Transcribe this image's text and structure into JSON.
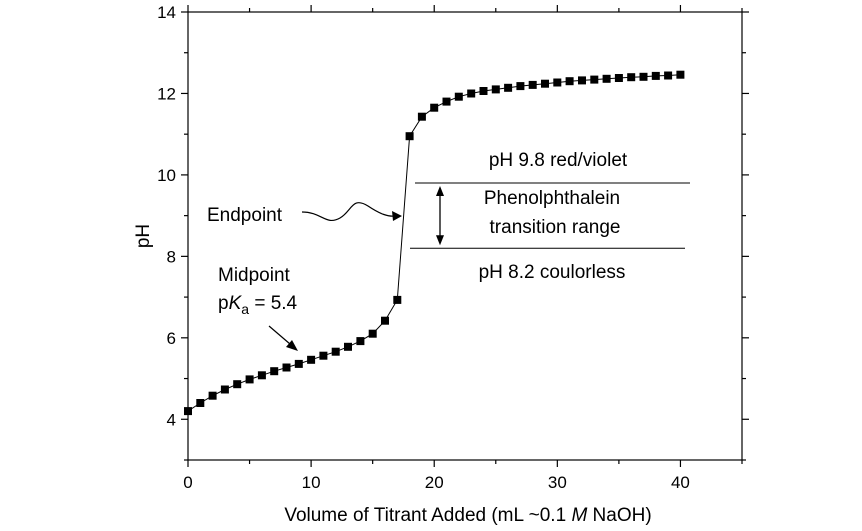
{
  "chart_data": {
    "type": "scatter",
    "title": "",
    "xlabel": {
      "prefix": "Volume of Titrant Added (mL ~0.1 ",
      "italic": "M",
      "suffix": " NaOH)"
    },
    "ylabel": "pH",
    "xlim": [
      0,
      45
    ],
    "ylim": [
      3,
      14
    ],
    "xticks": [
      0,
      10,
      20,
      30,
      40
    ],
    "yticks": [
      4,
      6,
      8,
      10,
      12,
      14
    ],
    "grid": false,
    "series": [
      {
        "name": "titration curve",
        "marker": "square",
        "color": "#000000",
        "x": [
          0,
          1,
          2,
          3,
          4,
          5,
          6,
          7,
          8,
          9,
          10,
          11,
          12,
          13,
          14,
          15,
          16,
          17,
          18,
          19,
          20,
          21,
          22,
          23,
          24,
          25,
          26,
          27,
          28,
          29,
          30,
          31,
          32,
          33,
          34,
          35,
          36,
          37,
          38,
          39,
          40
        ],
        "y": [
          4.2,
          4.4,
          4.58,
          4.73,
          4.86,
          4.98,
          5.08,
          5.18,
          5.27,
          5.36,
          5.46,
          5.56,
          5.66,
          5.78,
          5.92,
          6.1,
          6.42,
          6.93,
          10.95,
          11.43,
          11.65,
          11.8,
          11.92,
          12.0,
          12.06,
          12.1,
          12.14,
          12.18,
          12.21,
          12.24,
          12.27,
          12.3,
          12.32,
          12.34,
          12.36,
          12.38,
          12.4,
          12.41,
          12.43,
          12.44,
          12.46
        ]
      }
    ],
    "annotations": {
      "upper_line": {
        "text": "pH 9.8  red/violet",
        "y": 9.8
      },
      "lower_line": {
        "text": "pH 8.2  coulorless",
        "y": 8.2
      },
      "range_label": [
        "Phenolphthalein",
        "transition range"
      ],
      "endpoint_label": "Endpoint",
      "midpoint_label": {
        "line1": "Midpoint",
        "p": "p",
        "K": "K",
        "sub": "a",
        "value": " = 5.4"
      }
    }
  }
}
